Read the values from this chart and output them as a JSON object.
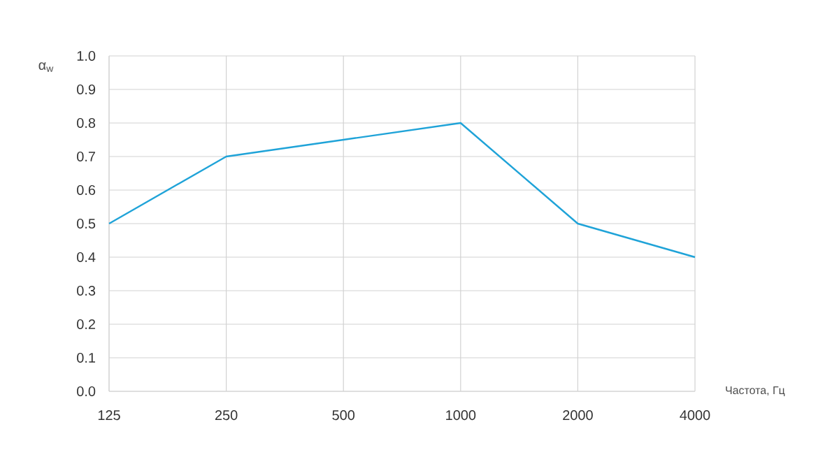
{
  "chart_data": {
    "type": "line",
    "ylabel": "α$_{w}$",
    "xlabel": "Частота, Гц",
    "categories": [
      "125",
      "250",
      "500",
      "1000",
      "2000",
      "4000"
    ],
    "series": [
      {
        "color": "#1fa3d8",
        "values": [
          0.5,
          0.7,
          0.75,
          0.8,
          0.5,
          0.4
        ]
      }
    ],
    "ylim": [
      0,
      1
    ],
    "yticks": [
      {
        "value": 0,
        "label": "0.0"
      },
      {
        "value": 0.1,
        "label": "0.1"
      },
      {
        "value": 0.2,
        "label": "0.2"
      },
      {
        "value": 0.3,
        "label": "0.3"
      },
      {
        "value": 0.4,
        "label": "0.4"
      },
      {
        "value": 0.5,
        "label": "0.5"
      },
      {
        "value": 0.6,
        "label": "0.6"
      },
      {
        "value": 0.7,
        "label": "0.7"
      },
      {
        "value": 0.8,
        "label": "0.8"
      },
      {
        "value": 0.9,
        "label": "0.9"
      },
      {
        "value": 1,
        "label": "1.0"
      }
    ],
    "grid": true,
    "marker": "none",
    "line_style": "solid"
  }
}
